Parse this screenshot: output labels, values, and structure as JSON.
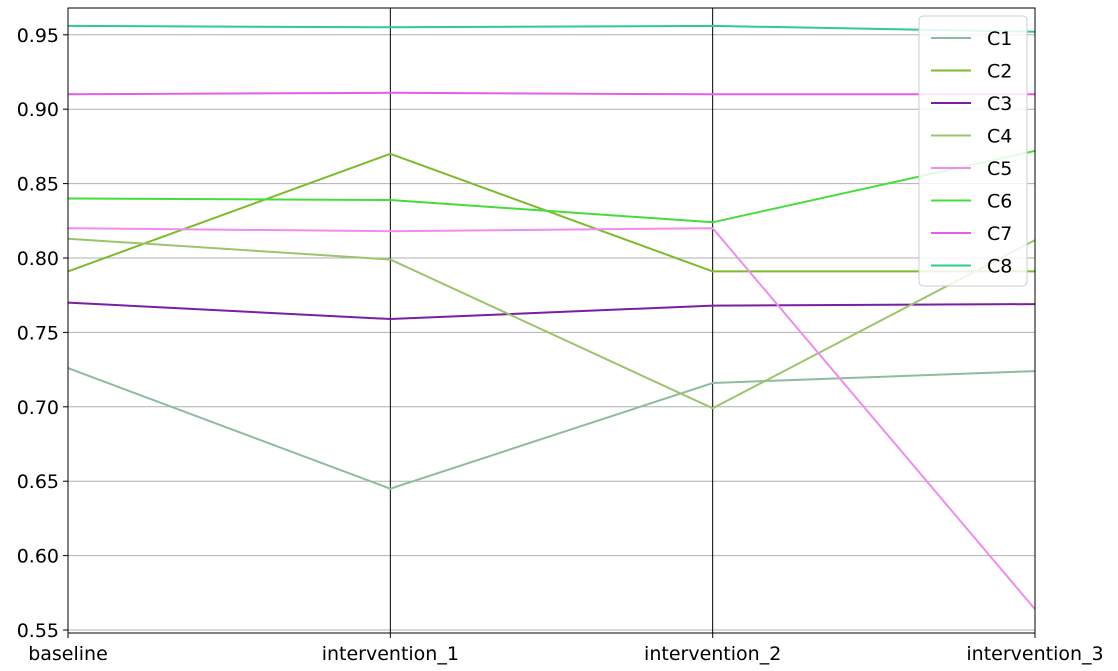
{
  "chart_data": {
    "type": "line",
    "title": "",
    "xlabel": "",
    "ylabel": "",
    "categories": [
      "baseline",
      "intervention_1",
      "intervention_2",
      "intervention_3"
    ],
    "ylim": [
      0.548,
      0.968
    ],
    "yticks": [
      0.55,
      0.6,
      0.65,
      0.7,
      0.75,
      0.8,
      0.85,
      0.9,
      0.95
    ],
    "ytick_labels": [
      "0.55",
      "0.60",
      "0.65",
      "0.70",
      "0.75",
      "0.80",
      "0.85",
      "0.90",
      "0.95"
    ],
    "grid": {
      "horizontal": true,
      "vertical_axes_lines": true
    },
    "legend": {
      "placement": "top-right"
    },
    "series": [
      {
        "name": "C1",
        "color": "#8fbc9f",
        "values": [
          0.726,
          0.645,
          0.716,
          0.724
        ]
      },
      {
        "name": "C2",
        "color": "#7dbb2a",
        "values": [
          0.791,
          0.87,
          0.791,
          0.791
        ]
      },
      {
        "name": "C3",
        "color": "#7a1fa2",
        "values": [
          0.77,
          0.759,
          0.768,
          0.769
        ]
      },
      {
        "name": "C4",
        "color": "#9cc46a",
        "values": [
          0.813,
          0.799,
          0.699,
          0.812
        ]
      },
      {
        "name": "C5",
        "color": "#f08cf0",
        "values": [
          0.82,
          0.818,
          0.82,
          0.564
        ]
      },
      {
        "name": "C6",
        "color": "#45dd3c",
        "values": [
          0.84,
          0.839,
          0.824,
          0.872
        ]
      },
      {
        "name": "C7",
        "color": "#e45ee6",
        "values": [
          0.91,
          0.911,
          0.91,
          0.91
        ]
      },
      {
        "name": "C8",
        "color": "#2fcc8e",
        "values": [
          0.956,
          0.955,
          0.956,
          0.952
        ]
      }
    ]
  }
}
